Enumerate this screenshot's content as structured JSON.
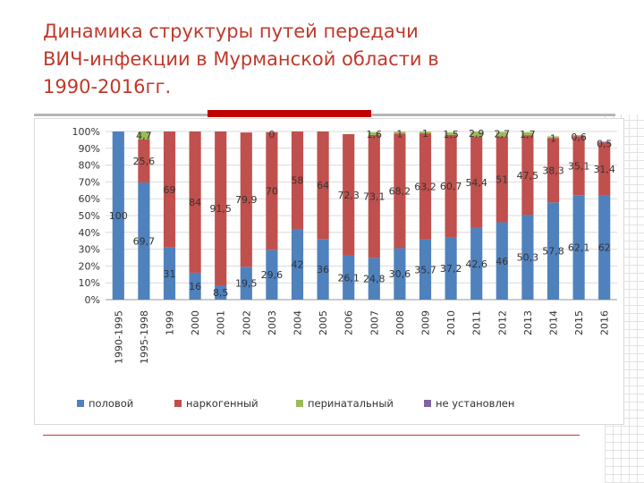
{
  "slide": {
    "title": "Динамика структуры путей передачи\nВИЧ-инфекции в Мурманской области в\n1990-2016гг."
  },
  "chart_data": {
    "type": "bar",
    "stacked": "percent",
    "title": "",
    "xlabel": "",
    "ylabel": "",
    "ylim": [
      0,
      100
    ],
    "y_ticks": [
      "0%",
      "10%",
      "20%",
      "30%",
      "40%",
      "50%",
      "60%",
      "70%",
      "80%",
      "90%",
      "100%"
    ],
    "legend_position": "bottom",
    "grid": true,
    "categories": [
      "1990-1995",
      "1995-1998",
      "1999",
      "2000",
      "2001",
      "2002",
      "2003",
      "2004",
      "2005",
      "2006",
      "2007",
      "2008",
      "2009",
      "2010",
      "2011",
      "2012",
      "2013",
      "2014",
      "2015",
      "2016"
    ],
    "series": [
      {
        "name": "половой",
        "color": "#4f81bd",
        "values": [
          100,
          69.7,
          31,
          16,
          8.5,
          19.5,
          29.6,
          42,
          36,
          26.1,
          24.8,
          30.6,
          35.7,
          37.2,
          42.6,
          46,
          50.3,
          57.8,
          62.1,
          62
        ],
        "labels": [
          "100",
          "69,7",
          "31",
          "16",
          "8,5",
          "19,5",
          "29,6",
          "42",
          "36",
          "26,1",
          "24,8",
          "30,6",
          "35,7",
          "37,2",
          "42,6",
          "46",
          "50,3",
          "57,8",
          "62,1",
          "62"
        ]
      },
      {
        "name": "наркогенный",
        "color": "#c0504d",
        "values": [
          0,
          25.6,
          69,
          84,
          91.5,
          79.9,
          70,
          58,
          64,
          72.3,
          73.1,
          68.2,
          63.2,
          60.7,
          54.4,
          51,
          47.5,
          38.3,
          35.1,
          31.4
        ],
        "labels": [
          "",
          "25,6",
          "69",
          "84",
          "91,5",
          "79,9",
          "70",
          "58",
          "64",
          "72,3",
          "73,1",
          "68,2",
          "63,2",
          "60,7",
          "54,4",
          "51",
          "47,5",
          "38,3",
          "35,1",
          "31,4"
        ]
      },
      {
        "name": "перинатальный",
        "color": "#9bbb59",
        "values": [
          0,
          4.7,
          0,
          0,
          0,
          0,
          0,
          0,
          0,
          0,
          1.6,
          1,
          1,
          1.5,
          2.9,
          2.7,
          1.7,
          1,
          0.6,
          0
        ],
        "labels": [
          "",
          "4,7",
          "",
          "",
          "",
          "",
          "0",
          "",
          "",
          "",
          "1,6",
          "1",
          "1",
          "1,5",
          "2,9",
          "2,7",
          "1,7",
          "1",
          "0,6",
          ""
        ]
      },
      {
        "name": "не установлен",
        "color": "#8064a2",
        "values": [
          0,
          0,
          0,
          0,
          0,
          0,
          0,
          0,
          0,
          0,
          0,
          0,
          0,
          0,
          0,
          0,
          0,
          0,
          0,
          0.5
        ],
        "labels": [
          "",
          "",
          "",
          "",
          "",
          "",
          "",
          "",
          "",
          "",
          "",
          "",
          "",
          "",
          "",
          "",
          "",
          "",
          "",
          "0,5"
        ]
      }
    ]
  }
}
